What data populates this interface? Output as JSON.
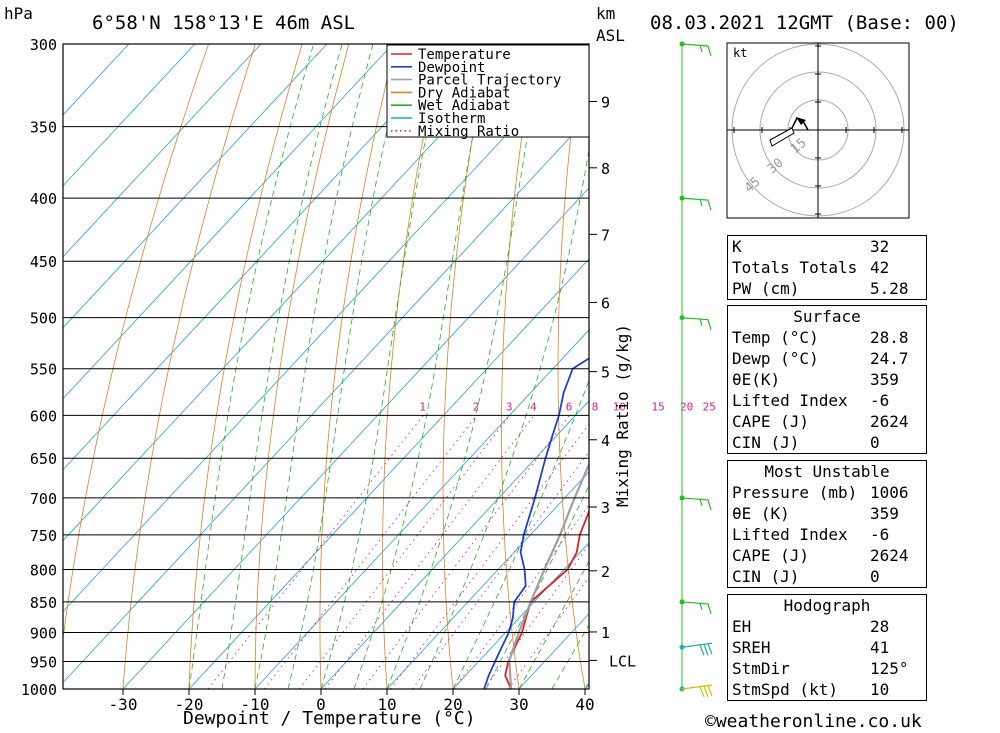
{
  "header": {
    "unit_pressure": "hPa",
    "location": "6°58'N  158°13'E  46m  ASL",
    "unit_height_top": "km",
    "unit_height_bottom": "ASL",
    "datetime": "08.03.2021  12GMT  (Base: 00)"
  },
  "footer": {
    "xlabel": "Dewpoint / Temperature (°C)",
    "mixing_ratio_label": "Mixing Ratio (g/kg)",
    "credit": "©weatheronline.co.uk"
  },
  "colors": {
    "temperature": "#e02020",
    "dewpoint": "#1f3fd0",
    "parcel": "#a0a0a0",
    "dry_adiabat": "#e08020",
    "wet_adiabat": "#20b020",
    "isotherm": "#20a0e0",
    "mixing_ratio": "#d020a0",
    "wind": "#20c020"
  },
  "chart_data": {
    "type": "line",
    "title": "6°58'N  158°13'E  46m  ASL",
    "xlabel": "Dewpoint / Temperature (°C)",
    "ylabel": "hPa",
    "xlim": [
      -40,
      40
    ],
    "pressure_range": [
      300,
      1000
    ],
    "pressure_ticks": [
      300,
      350,
      400,
      450,
      500,
      550,
      600,
      650,
      700,
      750,
      800,
      850,
      900,
      950,
      1000
    ],
    "temperature_ticks": [
      -30,
      -20,
      -10,
      0,
      10,
      20,
      30,
      40
    ],
    "height_ticks_km": [
      {
        "label": "9",
        "p": 334
      },
      {
        "label": "8",
        "p": 378
      },
      {
        "label": "7",
        "p": 428
      },
      {
        "label": "6",
        "p": 486
      },
      {
        "label": "5",
        "p": 553
      },
      {
        "label": "4",
        "p": 628
      },
      {
        "label": "3",
        "p": 712
      },
      {
        "label": "2",
        "p": 802
      },
      {
        "label": "1",
        "p": 899
      },
      {
        "label": "LCL",
        "p": 948
      }
    ],
    "mixing_ratio_lines": [
      1,
      2,
      3,
      4,
      6,
      8,
      10,
      15,
      20,
      25
    ],
    "legend": [
      "Temperature",
      "Dewpoint",
      "Parcel Trajectory",
      "Dry Adiabat",
      "Wet Adiabat",
      "Isotherm",
      "Mixing Ratio"
    ],
    "series": [
      {
        "name": "Temperature",
        "points": [
          [
            1000,
            28.8
          ],
          [
            975,
            26
          ],
          [
            950,
            24.5
          ],
          [
            925,
            23.5
          ],
          [
            900,
            22.5
          ],
          [
            875,
            21
          ],
          [
            850,
            19.5
          ],
          [
            825,
            20
          ],
          [
            800,
            20.5
          ],
          [
            775,
            19.5
          ],
          [
            750,
            17.5
          ],
          [
            700,
            14.5
          ],
          [
            650,
            11
          ],
          [
            625,
            9
          ],
          [
            600,
            7.5
          ],
          [
            575,
            5.5
          ],
          [
            550,
            3.2
          ],
          [
            525,
            1.5
          ],
          [
            500,
            -1.5
          ],
          [
            475,
            -4.5
          ],
          [
            450,
            -7.5
          ],
          [
            425,
            -11
          ],
          [
            400,
            -14.5
          ],
          [
            375,
            -20
          ],
          [
            360,
            -23.5
          ]
        ]
      },
      {
        "name": "Dewpoint",
        "points": [
          [
            1000,
            24.7
          ],
          [
            975,
            23.5
          ],
          [
            950,
            22.5
          ],
          [
            925,
            21.5
          ],
          [
            900,
            20.5
          ],
          [
            875,
            19
          ],
          [
            850,
            17
          ],
          [
            825,
            16.5
          ],
          [
            800,
            14
          ],
          [
            775,
            11
          ],
          [
            750,
            9
          ],
          [
            700,
            5.5
          ],
          [
            650,
            1.5
          ],
          [
            625,
            -0.5
          ],
          [
            600,
            -2.5
          ],
          [
            575,
            -5
          ],
          [
            550,
            -7
          ],
          [
            535,
            -5.5
          ],
          [
            520,
            -7.5
          ],
          [
            505,
            -10.5
          ],
          [
            490,
            -6
          ],
          [
            482,
            -11
          ],
          [
            470,
            -12
          ],
          [
            460,
            -10.5
          ],
          [
            450,
            -11.5
          ],
          [
            440,
            -18
          ],
          [
            432,
            -17
          ],
          [
            425,
            -20
          ],
          [
            418,
            -19
          ],
          [
            410,
            -21
          ],
          [
            400,
            -21
          ],
          [
            390,
            -21
          ],
          [
            378,
            -24
          ],
          [
            365,
            -28
          ],
          [
            355,
            -30
          ],
          [
            340,
            -39
          ],
          [
            333,
            -38
          ],
          [
            325,
            -37
          ],
          [
            318,
            -41
          ],
          [
            300,
            -44
          ]
        ]
      },
      {
        "name": "Parcel Trajectory",
        "points": [
          [
            1000,
            28.8
          ],
          [
            948,
            24.5
          ],
          [
            900,
            22
          ],
          [
            850,
            19.5
          ],
          [
            800,
            17
          ],
          [
            750,
            14.5
          ],
          [
            700,
            11.5
          ],
          [
            650,
            8.5
          ],
          [
            600,
            5
          ],
          [
            550,
            1
          ],
          [
            500,
            -4
          ],
          [
            450,
            -10
          ],
          [
            400,
            -17
          ],
          [
            365,
            -23
          ]
        ]
      }
    ],
    "wind_barbs_p": [
      300,
      400,
      500,
      700,
      850,
      925,
      1000
    ]
  },
  "hodograph": {
    "unit": "kt",
    "ring_labels": [
      "15",
      "30",
      "45"
    ]
  },
  "indices": [
    {
      "label": "K",
      "value": "32"
    },
    {
      "label": "Totals Totals",
      "value": "42"
    },
    {
      "label": "PW (cm)",
      "value": "5.28"
    }
  ],
  "surface": {
    "title": "Surface",
    "rows": [
      {
        "label": "Temp (°C)",
        "value": "28.8"
      },
      {
        "label": "Dewp (°C)",
        "value": "24.7"
      },
      {
        "label": "θE(K)",
        "value": "359"
      },
      {
        "label": "Lifted Index",
        "value": "-6"
      },
      {
        "label": "CAPE (J)",
        "value": "2624"
      },
      {
        "label": "CIN (J)",
        "value": "0"
      }
    ]
  },
  "most_unstable": {
    "title": "Most Unstable",
    "rows": [
      {
        "label": "Pressure (mb)",
        "value": "1006"
      },
      {
        "label": "θE (K)",
        "value": "359"
      },
      {
        "label": "Lifted Index",
        "value": "-6"
      },
      {
        "label": "CAPE (J)",
        "value": "2624"
      },
      {
        "label": "CIN (J)",
        "value": "0"
      }
    ]
  },
  "hodo_table": {
    "title": "Hodograph",
    "rows": [
      {
        "label": "EH",
        "value": "28"
      },
      {
        "label": "SREH",
        "value": "41"
      },
      {
        "label": "StmDir",
        "value": "125°"
      },
      {
        "label": "StmSpd (kt)",
        "value": "10"
      }
    ]
  }
}
